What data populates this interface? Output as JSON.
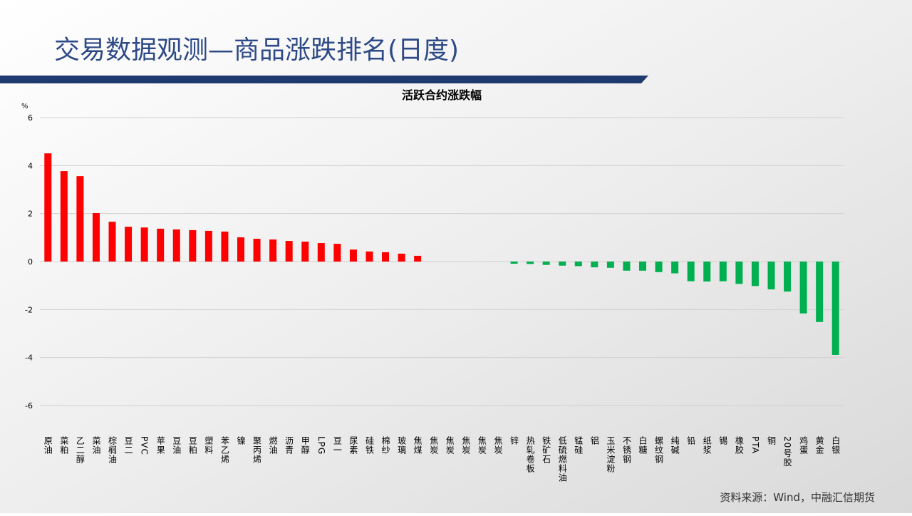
{
  "slide": {
    "title": "交易数据观测—商品涨跌排名(日度)",
    "source": "资料来源：Wind，中融汇信期货"
  },
  "chart_data": {
    "type": "bar",
    "title": "活跃合约涨跌幅",
    "y_label": "%",
    "categories": [
      "原油",
      "菜粕",
      "乙二醇",
      "菜油",
      "棕榈油",
      "豆二",
      "PVC",
      "苹果",
      "豆油",
      "豆粕",
      "塑料",
      "苯乙烯",
      "镍",
      "聚丙烯",
      "燃油",
      "沥青",
      "甲醇",
      "LPG",
      "豆一",
      "尿素",
      "硅铁",
      "棉纱",
      "玻璃",
      "焦煤",
      "焦炭",
      "焦炭",
      "焦炭",
      "焦炭",
      "焦炭",
      "锌",
      "热轧卷板",
      "铁矿石",
      "低硫燃料油",
      "锰硅",
      "铝",
      "玉米淀粉",
      "不锈钢",
      "白糖",
      "螺纹钢",
      "纯碱",
      "铅",
      "纸浆",
      "锡",
      "橡胶",
      "PTA",
      "铜",
      "20号胶",
      "鸡蛋",
      "黄金",
      "白银"
    ],
    "values": [
      4.51,
      3.77,
      3.56,
      2.02,
      1.66,
      1.45,
      1.42,
      1.37,
      1.34,
      1.31,
      1.28,
      1.25,
      1.01,
      0.95,
      0.92,
      0.86,
      0.83,
      0.77,
      0.74,
      0.5,
      0.42,
      0.39,
      0.33,
      0.24,
      0,
      0,
      0,
      0,
      0,
      -0.09,
      -0.1,
      -0.14,
      -0.17,
      -0.19,
      -0.24,
      -0.26,
      -0.38,
      -0.38,
      -0.44,
      -0.49,
      -0.82,
      -0.83,
      -0.82,
      -0.93,
      -1.02,
      -1.16,
      -1.25,
      -2.16,
      -2.52,
      -3.89
    ],
    "positive_color": "#ff0000",
    "negative_color": "#00b050",
    "ylim": [
      -6,
      6
    ],
    "yticks": [
      -6,
      -4,
      -2,
      0,
      2,
      4,
      6
    ],
    "grid": true
  }
}
